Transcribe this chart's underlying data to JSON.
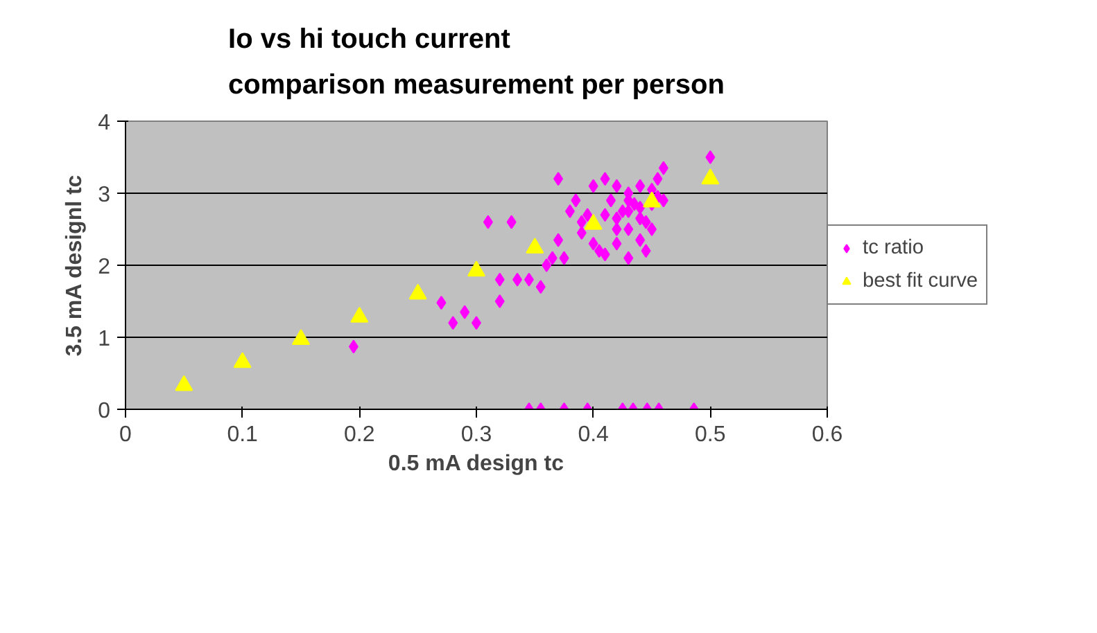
{
  "chart_data": {
    "type": "scatter",
    "title": "Io vs hi touch current\ncomparison measurement per person",
    "xlabel": "0.5 mA design tc",
    "ylabel": "3.5 mA designl tc",
    "xlim": [
      0,
      0.6
    ],
    "xticks": [
      0,
      0.1,
      0.2,
      0.3,
      0.4,
      0.5,
      0.6
    ],
    "ylim": [
      0,
      4
    ],
    "yticks": [
      0,
      1,
      2,
      3,
      4
    ],
    "grid": "y",
    "legend": "right",
    "series": [
      {
        "name": "tc ratio",
        "color": "#ff00ff",
        "marker": "diamond",
        "x": [
          0.195,
          0.27,
          0.28,
          0.29,
          0.3,
          0.31,
          0.32,
          0.32,
          0.33,
          0.335,
          0.345,
          0.355,
          0.36,
          0.365,
          0.37,
          0.37,
          0.375,
          0.38,
          0.385,
          0.39,
          0.39,
          0.395,
          0.4,
          0.4,
          0.405,
          0.41,
          0.41,
          0.41,
          0.415,
          0.42,
          0.42,
          0.42,
          0.425,
          0.43,
          0.43,
          0.43,
          0.435,
          0.44,
          0.44,
          0.44,
          0.445,
          0.445,
          0.45,
          0.45,
          0.455,
          0.455,
          0.46,
          0.46,
          0.5,
          0.43,
          0.44,
          0.45,
          0.42,
          0.43,
          0.345,
          0.355,
          0.375,
          0.395,
          0.425,
          0.434,
          0.446,
          0.456,
          0.486
        ],
        "values": [
          0.87,
          1.48,
          1.2,
          1.35,
          1.2,
          2.6,
          1.8,
          1.5,
          2.6,
          1.8,
          1.8,
          1.7,
          2.0,
          2.1,
          2.35,
          3.2,
          2.1,
          2.75,
          2.9,
          2.45,
          2.6,
          2.7,
          3.1,
          2.3,
          2.2,
          2.15,
          2.7,
          3.2,
          2.9,
          2.5,
          2.3,
          3.1,
          2.75,
          2.1,
          2.5,
          3.0,
          2.85,
          2.35,
          2.8,
          3.1,
          2.2,
          2.6,
          2.5,
          3.05,
          2.95,
          3.2,
          3.35,
          2.9,
          3.5,
          2.75,
          2.65,
          2.85,
          2.65,
          2.9,
          0,
          0,
          0,
          0,
          0,
          0,
          0,
          0,
          0
        ]
      },
      {
        "name": "best fit curve",
        "color": "#ffff00",
        "marker": "triangle",
        "x": [
          0.05,
          0.1,
          0.15,
          0.2,
          0.25,
          0.3,
          0.35,
          0.4,
          0.45,
          0.5
        ],
        "values": [
          0.33,
          0.65,
          0.97,
          1.28,
          1.6,
          1.92,
          2.24,
          2.57,
          2.88,
          3.2
        ]
      }
    ]
  }
}
